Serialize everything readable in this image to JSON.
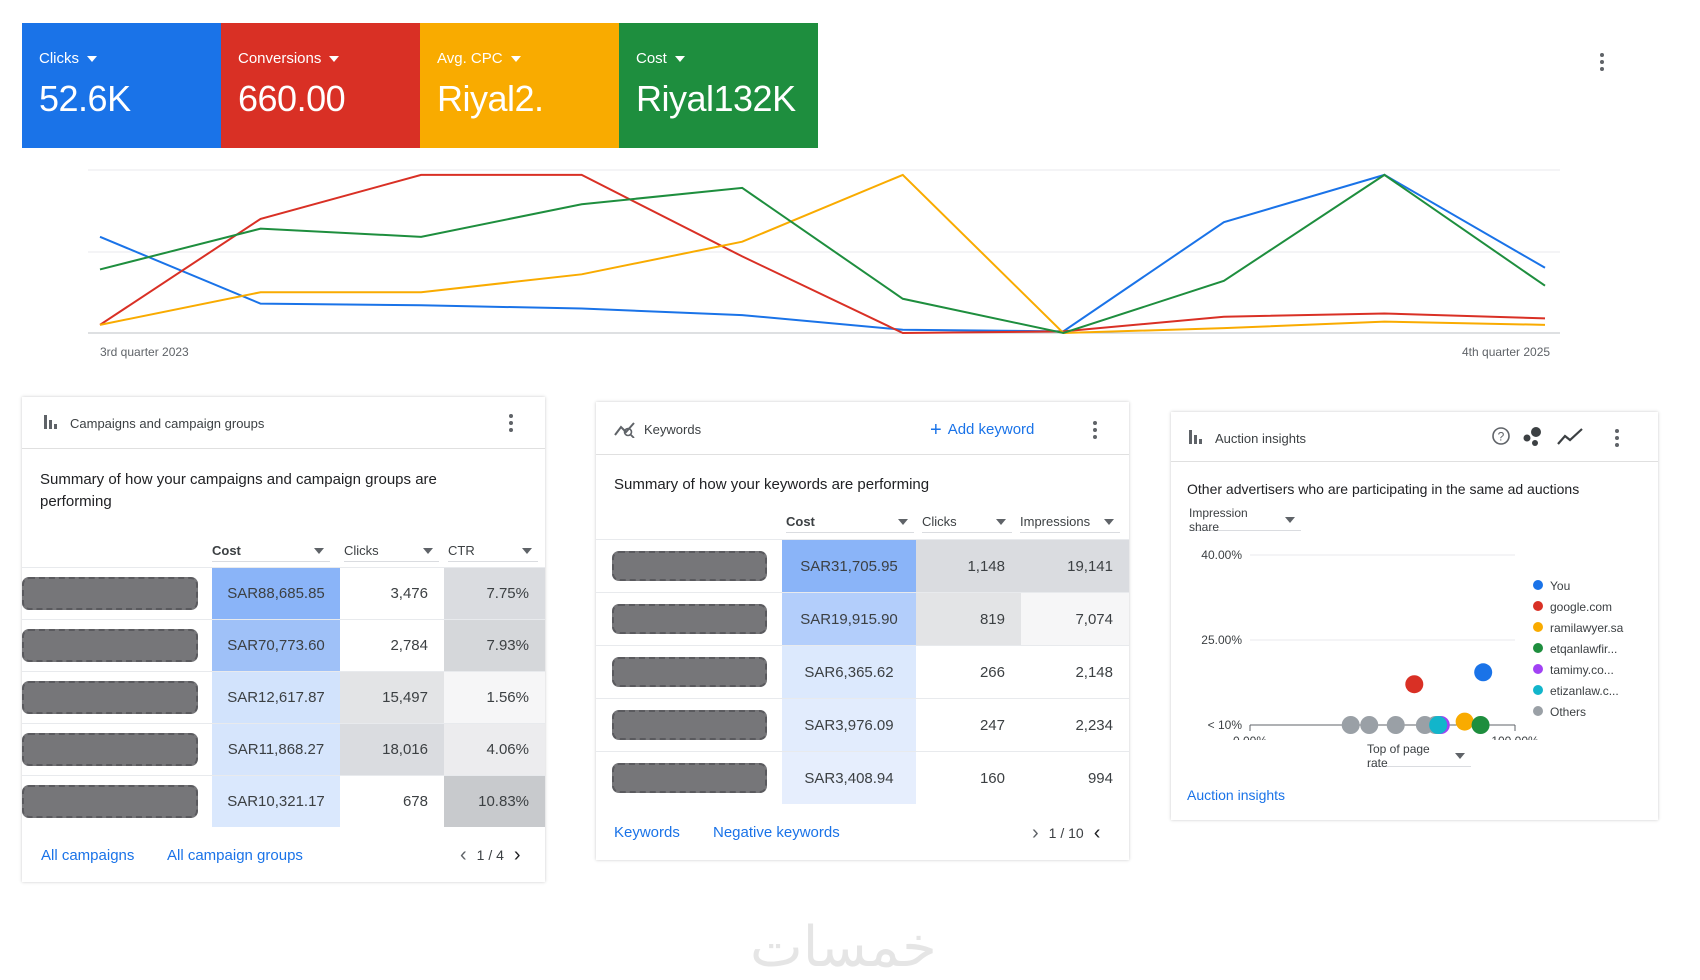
{
  "metrics": [
    {
      "label": "Clicks",
      "value": "52.6K",
      "color": "#1a73e8"
    },
    {
      "label": "Conversions",
      "value": "660.00",
      "color": "#d93025"
    },
    {
      "label": "Avg. CPC",
      "value": "Riyal2.",
      "color": "#f9ab00"
    },
    {
      "label": "Cost",
      "value": "Riyal132K",
      "color": "#1e8e3e"
    }
  ],
  "chart_data": {
    "type": "line",
    "x_start_label": "3rd quarter 2023",
    "x_end_label": "4th quarter 2025",
    "x": [
      1,
      2,
      3,
      4,
      5,
      6,
      7,
      8,
      9,
      10
    ],
    "ylim": [
      0,
      1
    ],
    "grid": true,
    "series": [
      {
        "metric": "Clicks",
        "color": "#1a73e8",
        "values": [
          0.59,
          0.18,
          0.17,
          0.15,
          0.11,
          0.02,
          0.01,
          0.68,
          0.97,
          0.4
        ]
      },
      {
        "metric": "Conversions",
        "color": "#d93025",
        "values": [
          0.05,
          0.7,
          0.97,
          0.97,
          0.47,
          0.0,
          0.01,
          0.1,
          0.12,
          0.09
        ]
      },
      {
        "metric": "Avg. CPC",
        "color": "#f9ab00",
        "values": [
          0.05,
          0.25,
          0.25,
          0.36,
          0.56,
          0.97,
          0.0,
          0.03,
          0.07,
          0.05
        ]
      },
      {
        "metric": "Cost",
        "color": "#1e8e3e",
        "values": [
          0.39,
          0.64,
          0.59,
          0.79,
          0.89,
          0.21,
          0.0,
          0.32,
          0.97,
          0.29
        ]
      }
    ]
  },
  "campaigns": {
    "title": "Campaigns and campaign groups",
    "summary": "Summary of how your campaigns and campaign groups are performing",
    "columns": [
      "Cost",
      "Clicks",
      "CTR"
    ],
    "rows": [
      {
        "cost": "SAR88,685.85",
        "clicks": "3,476",
        "ctr": "7.75%"
      },
      {
        "cost": "SAR70,773.60",
        "clicks": "2,784",
        "ctr": "7.93%"
      },
      {
        "cost": "SAR12,617.87",
        "clicks": "15,497",
        "ctr": "1.56%"
      },
      {
        "cost": "SAR11,868.27",
        "clicks": "18,016",
        "ctr": "4.06%"
      },
      {
        "cost": "SAR10,321.17",
        "clicks": "678",
        "ctr": "10.83%"
      }
    ],
    "link_all": "All campaigns",
    "link_groups": "All campaign groups",
    "pager": "1 / 4"
  },
  "keywords": {
    "title": "Keywords",
    "add_label": "Add keyword",
    "summary": "Summary of how your keywords are performing",
    "columns": [
      "Cost",
      "Clicks",
      "Impressions"
    ],
    "rows": [
      {
        "cost": "SAR31,705.95",
        "clicks": "1,148",
        "impressions": "19,141"
      },
      {
        "cost": "SAR19,915.90",
        "clicks": "819",
        "impressions": "7,074"
      },
      {
        "cost": "SAR6,365.62",
        "clicks": "266",
        "impressions": "2,148"
      },
      {
        "cost": "SAR3,976.09",
        "clicks": "247",
        "impressions": "2,234"
      },
      {
        "cost": "SAR3,408.94",
        "clicks": "160",
        "impressions": "994"
      }
    ],
    "link_keywords": "Keywords",
    "link_negative": "Negative keywords",
    "pager": "1 / 10"
  },
  "auction": {
    "title": "Auction insights",
    "summary": "Other advertisers who are participating in the same ad auctions",
    "y_select": "Impression share",
    "x_select": "Top of page rate",
    "y_ticks": [
      "40.00%",
      "25.00%",
      "< 10%"
    ],
    "x_ticks": [
      "0.00%",
      "100.00%"
    ],
    "legend": [
      {
        "name": "You",
        "color": "#1a73e8"
      },
      {
        "name": "google.com",
        "color": "#d93025"
      },
      {
        "name": "ramilawyer.sa",
        "color": "#f9ab00"
      },
      {
        "name": "etqanlawfir...",
        "color": "#1e8e3e"
      },
      {
        "name": "tamimy.co...",
        "color": "#a142f4"
      },
      {
        "name": "etizanlaw.c...",
        "color": "#12b5cb"
      },
      {
        "name": "Others",
        "color": "#9aa0a6"
      }
    ],
    "link": "Auction insights"
  },
  "auction_points": {
    "type": "scatter",
    "xlim": [
      0,
      100
    ],
    "y_levels": {
      "40.00%": 1.0,
      "25.00%": 0.5,
      "< 10%": 0.0
    },
    "points": [
      {
        "series": "You",
        "x": 88,
        "y": 0.31,
        "color": "#1a73e8"
      },
      {
        "series": "google.com",
        "x": 62,
        "y": 0.24,
        "color": "#d93025"
      },
      {
        "series": "ramilawyer.sa",
        "x": 81,
        "y": 0.02,
        "color": "#f9ab00"
      },
      {
        "series": "etqanlawfir...",
        "x": 87,
        "y": 0.0,
        "color": "#1e8e3e"
      },
      {
        "series": "tamimy.co...",
        "x": 72,
        "y": 0.0,
        "color": "#a142f4"
      },
      {
        "series": "etizanlaw.c...",
        "x": 71,
        "y": 0.0,
        "color": "#12b5cb"
      },
      {
        "series": "Others",
        "x": 38,
        "y": 0.0,
        "color": "#9aa0a6"
      },
      {
        "series": "Others",
        "x": 45,
        "y": 0.0,
        "color": "#9aa0a6"
      },
      {
        "series": "Others",
        "x": 55,
        "y": 0.0,
        "color": "#9aa0a6"
      },
      {
        "series": "Others",
        "x": 66,
        "y": 0.0,
        "color": "#9aa0a6"
      },
      {
        "series": "Others",
        "x": 70,
        "y": 0.0,
        "color": "#9aa0a6"
      }
    ]
  },
  "watermark": "خمسات"
}
